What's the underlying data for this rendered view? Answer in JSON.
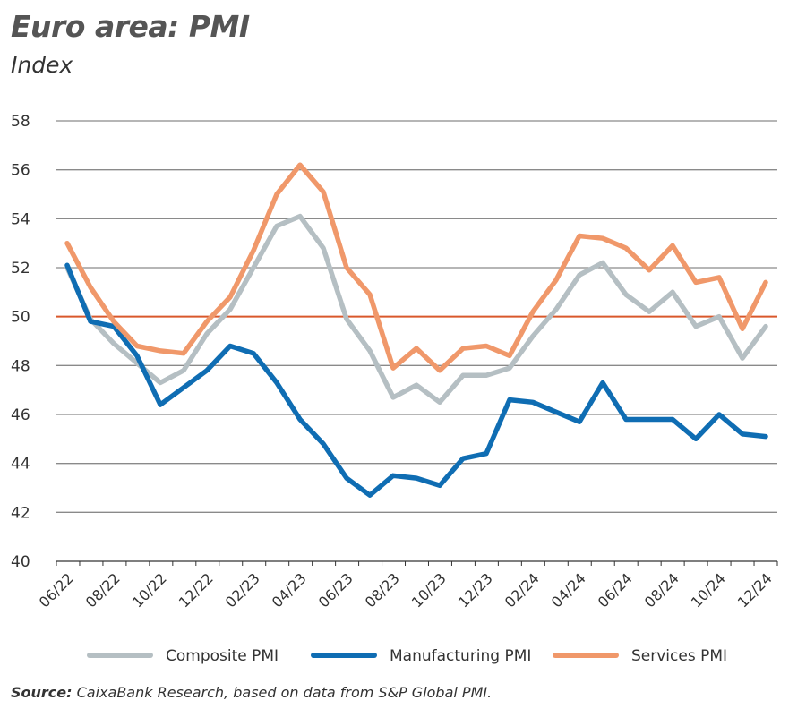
{
  "title": "Euro area: PMI",
  "subtitle": "Index",
  "source_label": "Source:",
  "source_text": "CaixaBank Research, based on data from S&P Global PMI.",
  "chart_data": {
    "type": "line",
    "title": "Euro area: PMI",
    "ylabel": "Index",
    "ylim": [
      40,
      58
    ],
    "yticks": [
      40,
      42,
      44,
      46,
      48,
      50,
      52,
      54,
      56,
      58
    ],
    "grid": true,
    "reference_line": {
      "y": 50,
      "color": "#d9582b"
    },
    "legend_position": "bottom",
    "x": [
      "06/22",
      "07/22",
      "08/22",
      "09/22",
      "10/22",
      "11/22",
      "12/22",
      "01/23",
      "02/23",
      "03/23",
      "04/23",
      "05/23",
      "06/23",
      "07/23",
      "08/23",
      "09/23",
      "10/23",
      "11/23",
      "12/23",
      "01/24",
      "02/24",
      "03/24",
      "04/24",
      "05/24",
      "06/24",
      "07/24",
      "08/24",
      "09/24",
      "10/24",
      "11/24",
      "12/24"
    ],
    "xtick_labels": [
      "06/22",
      "08/22",
      "10/22",
      "12/22",
      "02/23",
      "04/23",
      "06/23",
      "08/23",
      "10/23",
      "12/23",
      "02/24",
      "04/24",
      "06/24",
      "08/24",
      "10/24",
      "12/24"
    ],
    "series": [
      {
        "name": "Composite PMI",
        "color": "#b5bfc3",
        "values": [
          52.0,
          49.9,
          48.9,
          48.1,
          47.3,
          47.8,
          49.3,
          50.3,
          52.0,
          53.7,
          54.1,
          52.8,
          49.9,
          48.6,
          46.7,
          47.2,
          46.5,
          47.6,
          47.6,
          47.9,
          49.2,
          50.3,
          51.7,
          52.2,
          50.9,
          50.2,
          51.0,
          49.6,
          50.0,
          48.3,
          49.6
        ]
      },
      {
        "name": "Manufacturing PMI",
        "color": "#0f6db3",
        "values": [
          52.1,
          49.8,
          49.6,
          48.4,
          46.4,
          47.1,
          47.8,
          48.8,
          48.5,
          47.3,
          45.8,
          44.8,
          43.4,
          42.7,
          43.5,
          43.4,
          43.1,
          44.2,
          44.4,
          46.6,
          46.5,
          46.1,
          45.7,
          47.3,
          45.8,
          45.8,
          45.8,
          45.0,
          46.0,
          45.2,
          45.1
        ]
      },
      {
        "name": "Services PMI",
        "color": "#f0986a",
        "values": [
          53.0,
          51.2,
          49.8,
          48.8,
          48.6,
          48.5,
          49.8,
          50.8,
          52.7,
          55.0,
          56.2,
          55.1,
          52.0,
          50.9,
          47.9,
          48.7,
          47.8,
          48.7,
          48.8,
          48.4,
          50.2,
          51.5,
          53.3,
          53.2,
          52.8,
          51.9,
          52.9,
          51.4,
          51.6,
          49.5,
          51.4
        ]
      }
    ]
  }
}
